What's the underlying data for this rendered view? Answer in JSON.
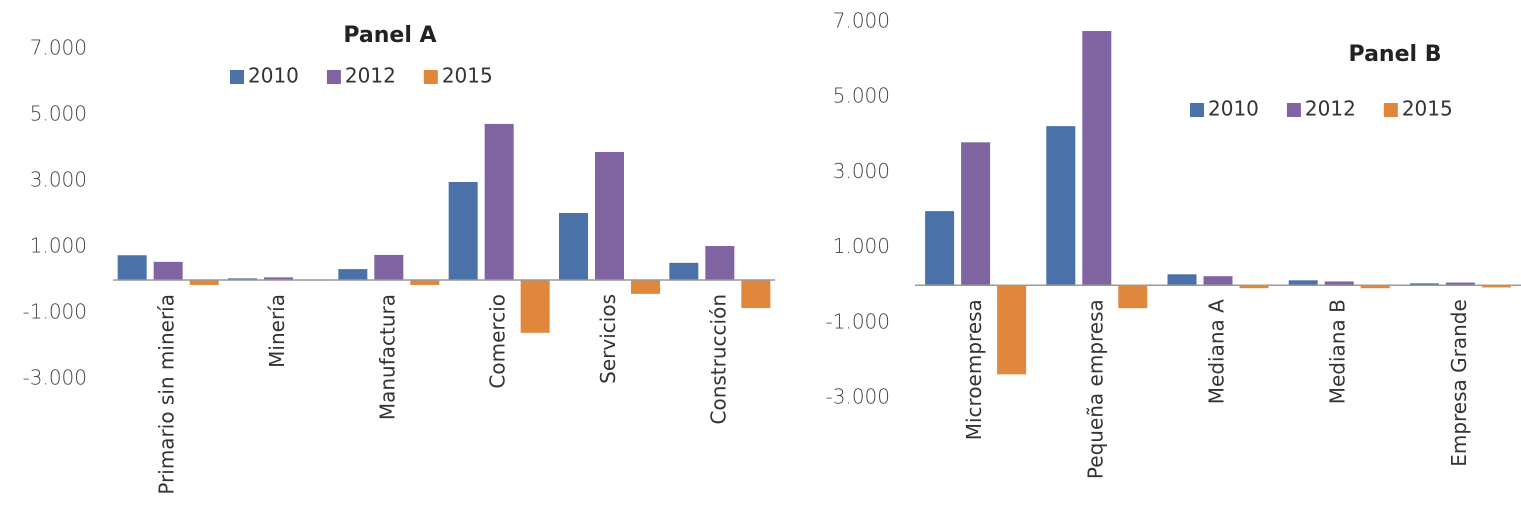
{
  "chart_data": [
    {
      "type": "bar",
      "title": "Panel A",
      "categories": [
        "Primario sin minería",
        "Minería",
        "Manufactura",
        "Comercio",
        "Servicios",
        "Construcción"
      ],
      "series": [
        {
          "name": "2010",
          "color": "#4a72a8",
          "values": [
            750,
            50,
            330,
            2970,
            2030,
            520
          ]
        },
        {
          "name": "2012",
          "color": "#8064a2",
          "values": [
            550,
            80,
            760,
            4730,
            3880,
            1030
          ]
        },
        {
          "name": "2015",
          "color": "#e0873c",
          "values": [
            -150,
            -20,
            -150,
            -1600,
            -420,
            -850
          ]
        }
      ],
      "ylim": [
        -3000,
        7000
      ],
      "yticks": [
        {
          "value": 7000,
          "label": "7.000"
        },
        {
          "value": 5000,
          "label": "5.000"
        },
        {
          "value": 3000,
          "label": "3.000"
        },
        {
          "value": 1000,
          "label": "1.000"
        },
        {
          "value": -1000,
          "label": "-1.000"
        },
        {
          "value": -3000,
          "label": "-3.000"
        }
      ],
      "legend": "top",
      "grid": false
    },
    {
      "type": "bar",
      "title": "Panel B",
      "categories": [
        "Microempresa",
        "Pequeña empresa",
        "Mediana A",
        "Mediana B",
        "Empresa Grande"
      ],
      "series": [
        {
          "name": "2010",
          "color": "#4a72a8",
          "values": [
            1970,
            4230,
            290,
            130,
            50
          ]
        },
        {
          "name": "2012",
          "color": "#8064a2",
          "values": [
            3800,
            6760,
            240,
            100,
            70
          ]
        },
        {
          "name": "2015",
          "color": "#e0873c",
          "values": [
            -2370,
            -610,
            -80,
            -80,
            -60
          ]
        }
      ],
      "ylim": [
        -3000,
        7000
      ],
      "yticks": [
        {
          "value": 7000,
          "label": "7.000"
        },
        {
          "value": 5000,
          "label": "5.000"
        },
        {
          "value": 3000,
          "label": "3.000"
        },
        {
          "value": 1000,
          "label": "1.000"
        },
        {
          "value": -1000,
          "label": "-1.000"
        },
        {
          "value": -3000,
          "label": "-3.000"
        }
      ],
      "legend": "top-right",
      "grid": false
    }
  ]
}
